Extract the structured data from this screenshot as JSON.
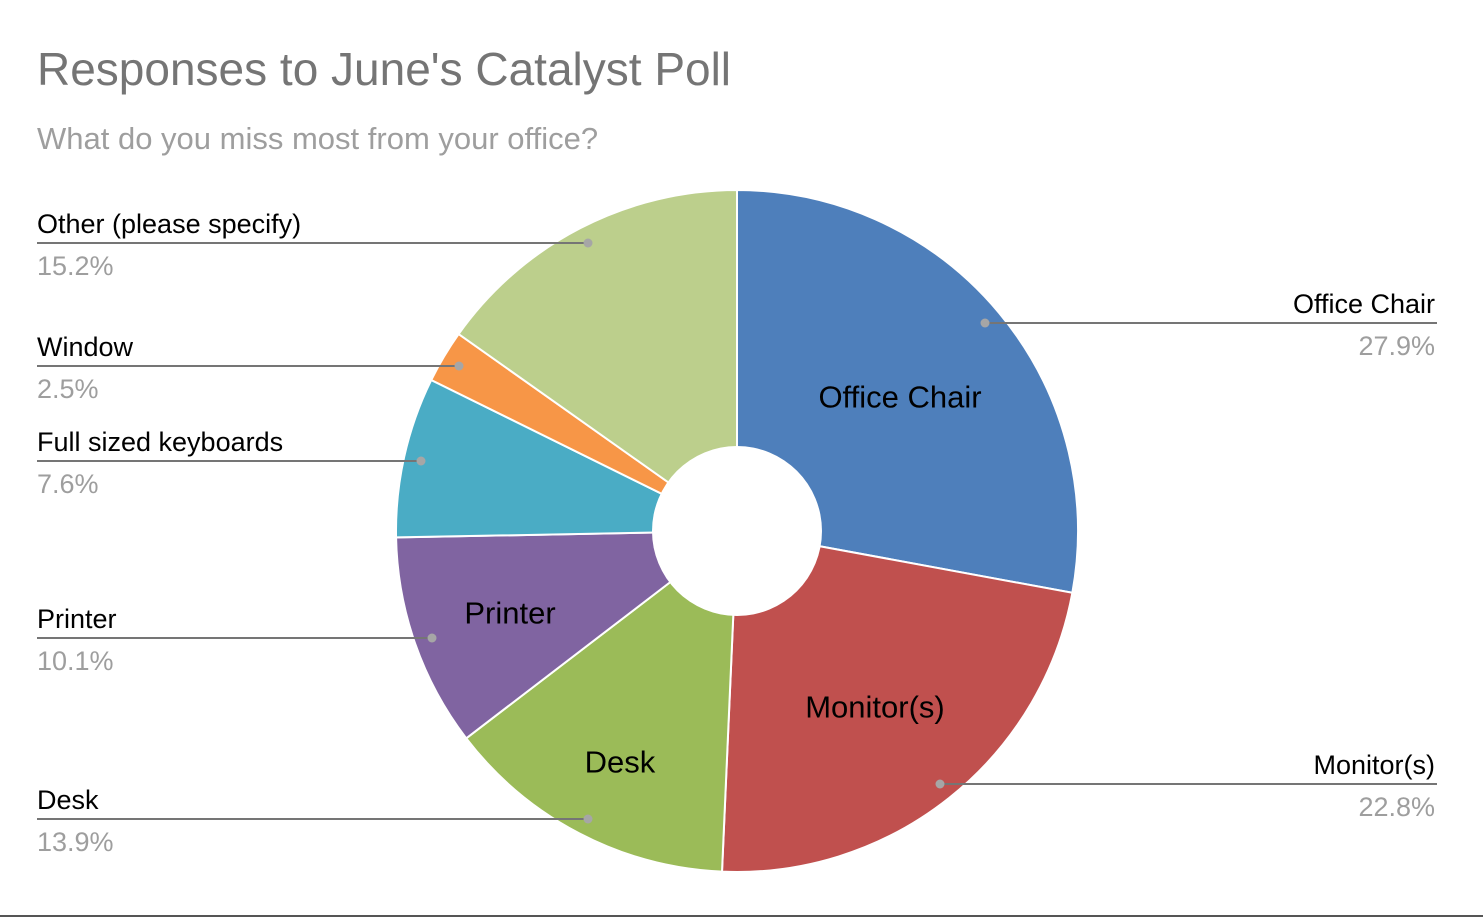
{
  "chart_data": {
    "type": "pie",
    "donut": true,
    "title": "Responses to June's Catalyst Poll",
    "subtitle": "What do you miss most from your office?",
    "slices": [
      {
        "label": "Office Chair",
        "value": 27.9,
        "percent_label": "27.9%",
        "color": "#4e7fbb",
        "inner_label": "Office Chair"
      },
      {
        "label": "Monitor(s)",
        "value": 22.8,
        "percent_label": "22.8%",
        "color": "#c0504e",
        "inner_label": "Monitor(s)"
      },
      {
        "label": "Desk",
        "value": 13.9,
        "percent_label": "13.9%",
        "color": "#9bbb58",
        "inner_label": "Desk"
      },
      {
        "label": "Printer",
        "value": 10.1,
        "percent_label": "10.1%",
        "color": "#8064a1",
        "inner_label": "Printer"
      },
      {
        "label": "Full sized keyboards",
        "value": 7.6,
        "percent_label": "7.6%",
        "color": "#4aacc5",
        "inner_label": ""
      },
      {
        "label": "Window",
        "value": 2.5,
        "percent_label": "2.5%",
        "color": "#f79647",
        "inner_label": ""
      },
      {
        "label": "Other (please specify)",
        "value": 15.2,
        "percent_label": "15.2%",
        "color": "#bccf8c",
        "inner_label": ""
      }
    ],
    "legend": "callout labels, left and right of the pie",
    "label_color": "#000000",
    "percent_color": "#9e9e9e",
    "leader_color": "#757575",
    "dot_color": "#a6a6a6"
  }
}
